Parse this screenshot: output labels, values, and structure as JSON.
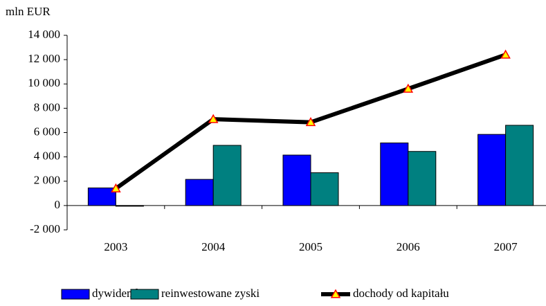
{
  "chart_data": {
    "type": "bar",
    "y_axis_label": "mln EUR",
    "categories": [
      "2003",
      "2004",
      "2005",
      "2006",
      "2007"
    ],
    "series": [
      {
        "name": "dywidendy",
        "color": "#0000ff",
        "values": [
          1450,
          2150,
          4150,
          5150,
          5850
        ]
      },
      {
        "name": "reinwestowane zyski",
        "color": "#008080",
        "values": [
          -50,
          4950,
          2700,
          4450,
          6600
        ]
      },
      {
        "name": "dochody od kapitału",
        "type": "line",
        "color": "#000000",
        "marker_color": "#ffff00",
        "marker_edge": "#ff0000",
        "values": [
          1400,
          7100,
          6850,
          9600,
          12400
        ]
      }
    ],
    "ylim": [
      -2000,
      14000
    ],
    "yticks": [
      {
        "value": -2000,
        "label": "-2 000"
      },
      0,
      {
        "value": 2000,
        "label": "2 000"
      },
      {
        "value": 4000,
        "label": "4 000"
      },
      {
        "value": 6000,
        "label": "6 000"
      },
      {
        "value": 8000,
        "label": "8 000"
      },
      {
        "value": 10000,
        "label": "10 000"
      },
      {
        "value": 12000,
        "label": "12 000"
      },
      {
        "value": 14000,
        "label": "14 000"
      }
    ],
    "legend": "bottom"
  }
}
